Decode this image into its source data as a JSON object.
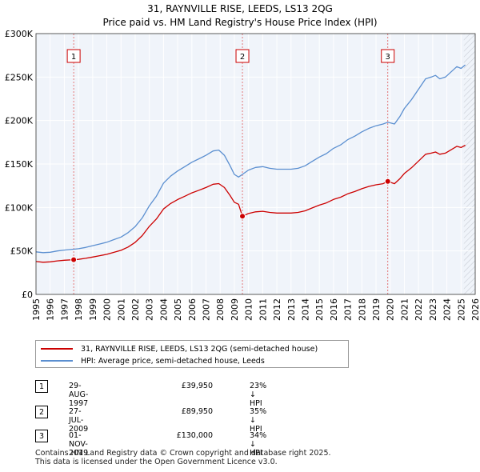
{
  "header": {
    "title": "31, RAYNVILLE RISE, LEEDS, LS13 2QG",
    "subtitle": "Price paid vs. HM Land Registry's House Price Index (HPI)"
  },
  "legend": {
    "items": [
      {
        "label": "31, RAYNVILLE RISE, LEEDS, LS13 2QG (semi-detached house)",
        "color": "#cc0000"
      },
      {
        "label": "HPI: Average price, semi-detached house, Leeds",
        "color": "#5b8fd0"
      }
    ]
  },
  "transactions": [
    {
      "marker": "1",
      "date": "29-AUG-1997",
      "price": "£39,950",
      "hpi_diff": "23% ↓ HPI"
    },
    {
      "marker": "2",
      "date": "27-JUL-2009",
      "price": "£89,950",
      "hpi_diff": "35% ↓ HPI"
    },
    {
      "marker": "3",
      "date": "01-NOV-2019",
      "price": "£130,000",
      "hpi_diff": "34% ↓ HPI"
    }
  ],
  "footer": {
    "line1": "Contains HM Land Registry data © Crown copyright and database right 2025.",
    "line2": "This data is licensed under the Open Government Licence v3.0."
  },
  "chart_data": {
    "type": "line",
    "title": "31, RAYNVILLE RISE, LEEDS, LS13 2QG",
    "subtitle": "Price paid vs. HM Land Registry's House Price Index (HPI)",
    "xlabel": "",
    "ylabel": "",
    "xlim": [
      1995,
      2026
    ],
    "ylim": [
      0,
      300000
    ],
    "y_ticks": [
      0,
      50000,
      100000,
      150000,
      200000,
      250000,
      300000
    ],
    "y_tick_labels": [
      "£0",
      "£50K",
      "£100K",
      "£150K",
      "£200K",
      "£250K",
      "£300K"
    ],
    "x_ticks": [
      1995,
      1996,
      1997,
      1998,
      1999,
      2000,
      2001,
      2002,
      2003,
      2004,
      2005,
      2006,
      2007,
      2008,
      2009,
      2010,
      2011,
      2012,
      2013,
      2014,
      2015,
      2016,
      2017,
      2018,
      2019,
      2020,
      2021,
      2022,
      2023,
      2024,
      2025,
      2026
    ],
    "x_tick_labels": [
      "1995",
      "1996",
      "1997",
      "1998",
      "1999",
      "2000",
      "2001",
      "2002",
      "2003",
      "2004",
      "2005",
      "2006",
      "2007",
      "2008",
      "2009",
      "2010",
      "2011",
      "2012",
      "2013",
      "2014",
      "2015",
      "2016",
      "2017",
      "2018",
      "2019",
      "2020",
      "2021",
      "2022",
      "2023",
      "2024",
      "2025",
      "2026"
    ],
    "grid": true,
    "legend_position": "below",
    "forecast_start": 2025.2,
    "series": [
      {
        "name": "HPI: Average price, semi-detached house, Leeds",
        "color": "#5b8fd0",
        "x": [
          1995.0,
          1995.5,
          1996.0,
          1996.5,
          1997.0,
          1997.67,
          1998.0,
          1998.5,
          1999.0,
          1999.5,
          2000.0,
          2000.5,
          2001.0,
          2001.5,
          2002.0,
          2002.5,
          2003.0,
          2003.5,
          2004.0,
          2004.5,
          2005.0,
          2005.5,
          2006.0,
          2006.5,
          2007.0,
          2007.5,
          2007.9,
          2008.3,
          2008.7,
          2009.0,
          2009.3,
          2009.57,
          2010.0,
          2010.5,
          2011.0,
          2011.5,
          2012.0,
          2012.5,
          2013.0,
          2013.5,
          2014.0,
          2014.5,
          2015.0,
          2015.5,
          2016.0,
          2016.5,
          2017.0,
          2017.5,
          2018.0,
          2018.5,
          2019.0,
          2019.5,
          2019.83,
          2020.3,
          2020.7,
          2021.0,
          2021.5,
          2022.0,
          2022.5,
          2022.9,
          2023.2,
          2023.5,
          2023.9,
          2024.3,
          2024.7,
          2025.0,
          2025.3
        ],
        "values": [
          49000,
          48000,
          48500,
          50000,
          51000,
          52000,
          52500,
          54000,
          56000,
          58000,
          60000,
          63000,
          66000,
          71000,
          78000,
          88000,
          102000,
          113000,
          128000,
          136000,
          142000,
          147000,
          152000,
          156000,
          160000,
          165000,
          166000,
          160000,
          148000,
          138000,
          135000,
          138000,
          143000,
          146000,
          147000,
          145000,
          144000,
          144000,
          144000,
          145000,
          148000,
          153000,
          158000,
          162000,
          168000,
          172000,
          178000,
          182000,
          187000,
          191000,
          194000,
          196000,
          198000,
          196000,
          205000,
          214000,
          224000,
          236000,
          248000,
          250000,
          252000,
          248000,
          250000,
          256000,
          262000,
          260000,
          264000
        ]
      },
      {
        "name": "31, RAYNVILLE RISE, LEEDS, LS13 2QG (semi-detached house)",
        "color": "#cc0000",
        "x": [
          1995.0,
          1995.5,
          1996.0,
          1996.5,
          1997.0,
          1997.67,
          1998.0,
          1998.5,
          1999.0,
          1999.5,
          2000.0,
          2000.5,
          2001.0,
          2001.5,
          2002.0,
          2002.5,
          2003.0,
          2003.5,
          2004.0,
          2004.5,
          2005.0,
          2005.5,
          2006.0,
          2006.5,
          2007.0,
          2007.5,
          2007.9,
          2008.3,
          2008.7,
          2009.0,
          2009.3,
          2009.57,
          2010.0,
          2010.5,
          2011.0,
          2011.5,
          2012.0,
          2012.5,
          2013.0,
          2013.5,
          2014.0,
          2014.5,
          2015.0,
          2015.5,
          2016.0,
          2016.5,
          2017.0,
          2017.5,
          2018.0,
          2018.5,
          2019.0,
          2019.5,
          2019.83,
          2020.3,
          2020.7,
          2021.0,
          2021.5,
          2022.0,
          2022.5,
          2022.9,
          2023.2,
          2023.5,
          2023.9,
          2024.3,
          2024.7,
          2025.0,
          2025.3
        ],
        "values": [
          37800,
          37000,
          37500,
          38600,
          39300,
          39950,
          40300,
          41500,
          43000,
          44500,
          46100,
          48400,
          50700,
          54500,
          59900,
          67600,
          78300,
          86800,
          98300,
          104500,
          109100,
          112900,
          116800,
          119800,
          122900,
          126700,
          127500,
          122900,
          113700,
          106000,
          103700,
          89950,
          93000,
          95000,
          95600,
          94300,
          93600,
          93600,
          93600,
          94300,
          96200,
          99500,
          102700,
          105300,
          109200,
          111800,
          115700,
          118300,
          121600,
          124200,
          126100,
          127400,
          130000,
          127400,
          133300,
          139100,
          145600,
          153400,
          161200,
          162500,
          163800,
          161200,
          162500,
          166400,
          170300,
          169000,
          171600
        ]
      }
    ],
    "sales": [
      {
        "label": "1",
        "x": 1997.66,
        "value": 39950
      },
      {
        "label": "2",
        "x": 2009.57,
        "value": 89950
      },
      {
        "label": "3",
        "x": 2019.83,
        "value": 130000
      }
    ]
  }
}
